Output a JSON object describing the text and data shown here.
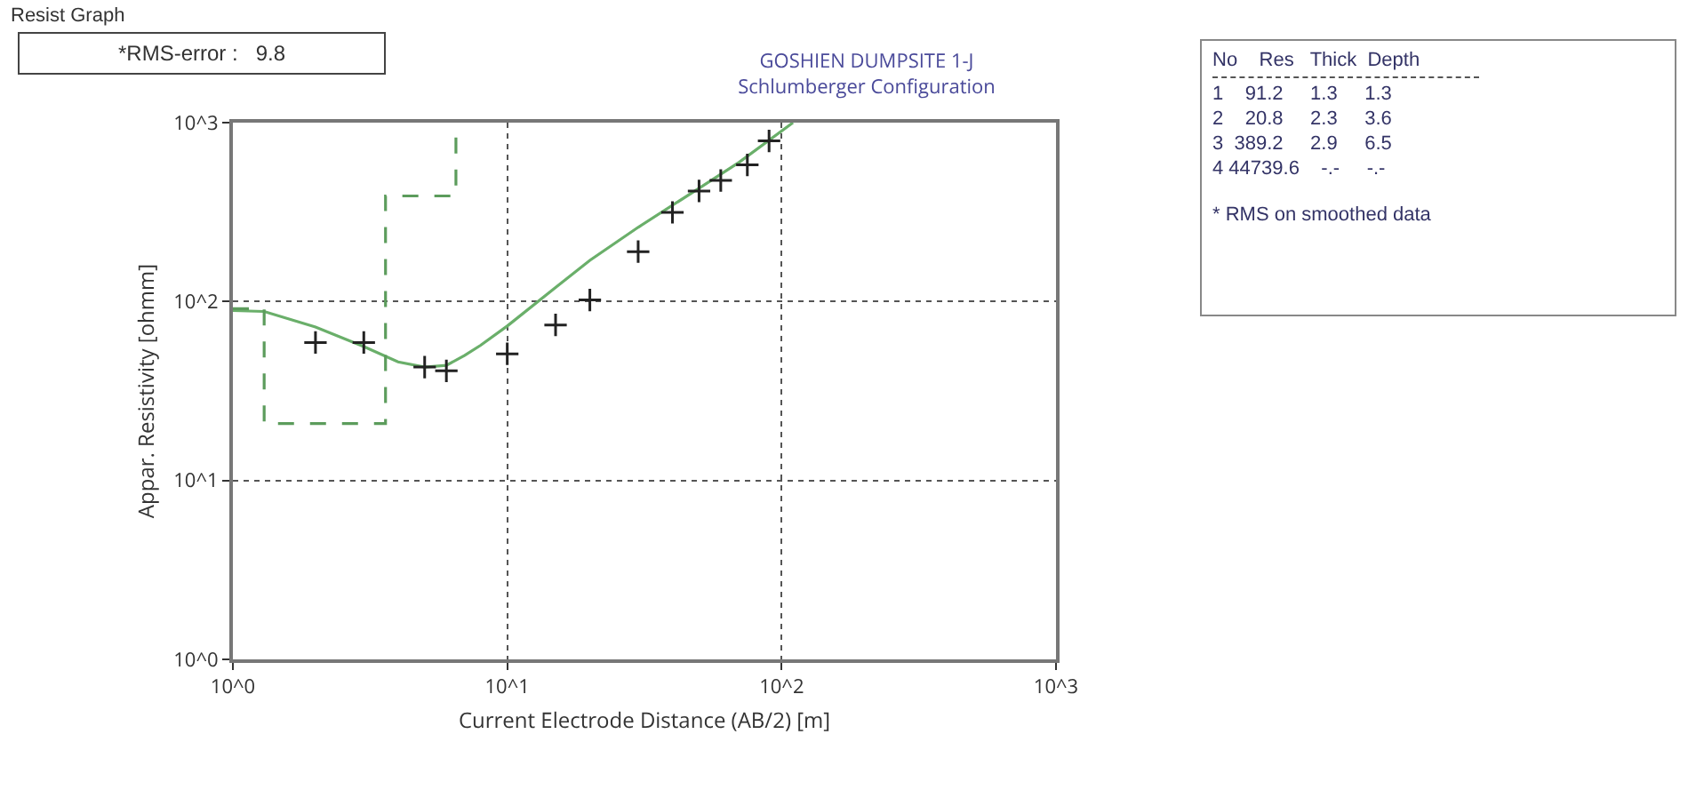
{
  "chart_data": {
    "type": "line",
    "title": "GOSHIEN DUMPSITE 1-J\nSchlumberger Configuration",
    "xlabel": "Current Electrode Distance (AB/2) [m]",
    "ylabel": "Appar. Resistivity [ohmm]",
    "annotations": [
      "Resist Graph",
      "*RMS-error :   9.8",
      "No    Res   Thick  Depth",
      "1    91.2     1.3     1.3",
      "2    20.8     2.3     3.6",
      "3  389.2     2.9     6.5",
      "4 44739.6    -.-     -.-",
      "* RMS on smoothed data"
    ],
    "log": "xy",
    "xlim": [
      1,
      1000
    ],
    "ylim": [
      1,
      1000
    ],
    "xticks": [
      {
        "value": 1,
        "label": "10^0"
      },
      {
        "value": 10,
        "label": "10^1"
      },
      {
        "value": 100,
        "label": "10^2"
      },
      {
        "value": 1000,
        "label": "10^3"
      }
    ],
    "yticks": [
      {
        "value": 1,
        "label": "10^0"
      },
      {
        "value": 10,
        "label": "10^1"
      },
      {
        "value": 100,
        "label": "10^2"
      },
      {
        "value": 1000,
        "label": "10^3"
      }
    ],
    "grid": true,
    "series": [
      {
        "type": "line",
        "color": "#6aaf6a",
        "line_style": "solid",
        "marker": "none",
        "x": [
          1,
          1.3,
          2,
          3,
          4,
          5,
          6,
          7,
          8,
          10,
          15,
          20,
          30,
          50,
          70,
          110
        ],
        "values": [
          89,
          88,
          72,
          56,
          46,
          43,
          44,
          50,
          57,
          73,
          120,
          170,
          260,
          430,
          600,
          1000
        ]
      },
      {
        "type": "line",
        "color": "#5c9c5c",
        "line_style": "dashed",
        "marker": "none",
        "x": [
          1,
          1.3,
          1.3,
          3.6,
          3.6,
          6.5,
          6.5
        ],
        "values": [
          91.2,
          91.2,
          20.8,
          20.8,
          389.2,
          389.2,
          1000
        ]
      },
      {
        "type": "scatter",
        "color": "#222222",
        "marker": "cross",
        "x": [
          2,
          3,
          5,
          6,
          10,
          15,
          20,
          30,
          40,
          50,
          60,
          75,
          90
        ],
        "values": [
          59,
          59,
          43,
          41,
          51,
          74,
          102,
          190,
          315,
          415,
          475,
          580,
          790
        ]
      }
    ]
  }
}
